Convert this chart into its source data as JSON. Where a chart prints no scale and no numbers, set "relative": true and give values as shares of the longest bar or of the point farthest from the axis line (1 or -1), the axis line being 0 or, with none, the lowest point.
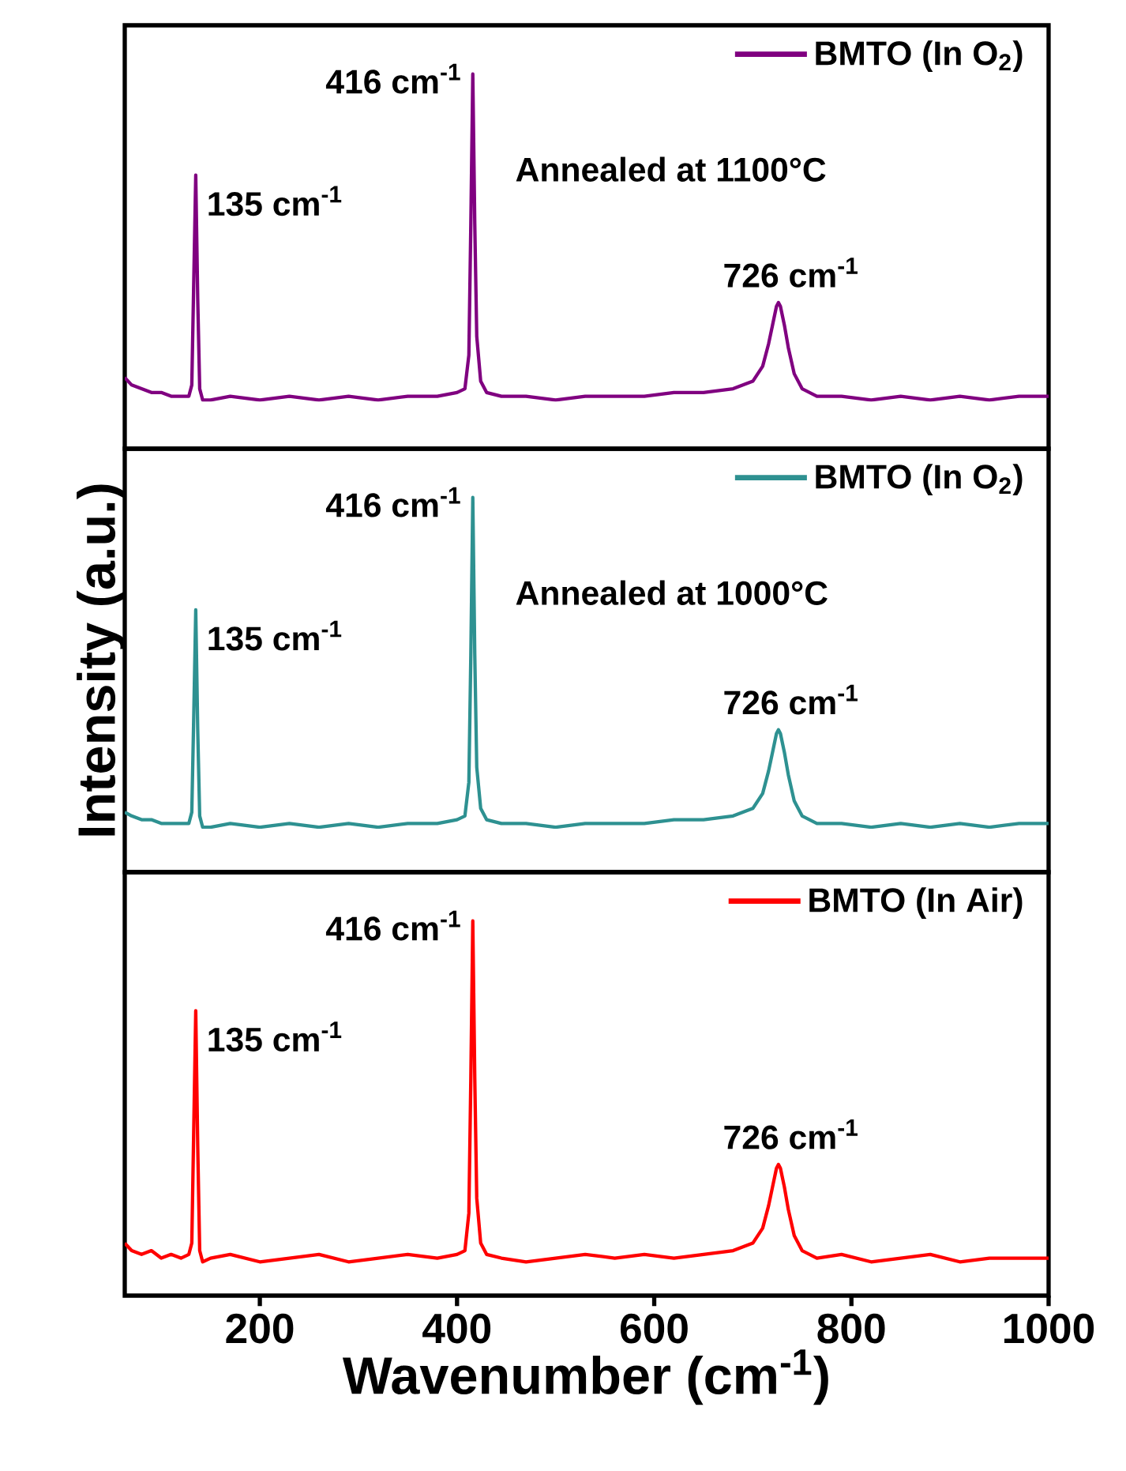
{
  "chart_data": [
    {
      "type": "line",
      "relative": true,
      "xlim": [
        63,
        1000
      ],
      "tick_labels": false,
      "legend": "top right",
      "series": [
        {
          "name": "BMTO (In O$_{2}$)",
          "color": "#800080",
          "x": [
            63,
            70,
            80,
            90,
            100,
            110,
            120,
            128,
            131,
            133,
            135,
            137,
            139,
            142,
            150,
            170,
            200,
            230,
            260,
            290,
            320,
            350,
            380,
            400,
            408,
            412,
            414,
            416,
            418,
            420,
            424,
            430,
            445,
            470,
            500,
            530,
            560,
            590,
            620,
            650,
            680,
            700,
            710,
            716,
            720,
            724,
            726,
            728,
            732,
            736,
            742,
            750,
            765,
            790,
            820,
            850,
            880,
            910,
            940,
            970,
            1000
          ],
          "values": [
            0.19,
            0.17,
            0.16,
            0.15,
            0.15,
            0.14,
            0.14,
            0.14,
            0.17,
            0.45,
            0.73,
            0.4,
            0.16,
            0.13,
            0.13,
            0.14,
            0.13,
            0.14,
            0.13,
            0.14,
            0.13,
            0.14,
            0.14,
            0.15,
            0.16,
            0.25,
            0.6,
            1.0,
            0.6,
            0.3,
            0.18,
            0.15,
            0.14,
            0.14,
            0.13,
            0.14,
            0.14,
            0.14,
            0.15,
            0.15,
            0.16,
            0.18,
            0.22,
            0.28,
            0.33,
            0.38,
            0.39,
            0.38,
            0.33,
            0.27,
            0.2,
            0.16,
            0.14,
            0.14,
            0.13,
            0.14,
            0.13,
            0.14,
            0.13,
            0.14,
            0.14
          ]
        }
      ],
      "annotations": [
        {
          "text": "416 cm$^{-1}$",
          "x": 416,
          "y": 1.0
        },
        {
          "text": "135 cm$^{-1}$",
          "x": 135,
          "y": 0.73
        },
        {
          "text": "726 cm$^{-1}$",
          "x": 726,
          "y": 0.39
        },
        "Annealed at 1100°C"
      ]
    },
    {
      "type": "line",
      "relative": true,
      "xlim": [
        63,
        1000
      ],
      "tick_labels": false,
      "legend": "top right",
      "ylabel": "Intensity (a.u.)",
      "series": [
        {
          "name": "BMTO (In O$_{2}$)",
          "color": "#2e9191",
          "x": [
            63,
            70,
            80,
            90,
            100,
            110,
            120,
            128,
            131,
            133,
            135,
            137,
            139,
            142,
            150,
            170,
            200,
            230,
            260,
            290,
            320,
            350,
            380,
            400,
            408,
            412,
            414,
            416,
            418,
            420,
            424,
            430,
            445,
            470,
            500,
            530,
            560,
            590,
            620,
            650,
            680,
            700,
            710,
            716,
            720,
            724,
            726,
            728,
            732,
            736,
            742,
            750,
            765,
            790,
            820,
            850,
            880,
            910,
            940,
            970,
            1000
          ],
          "values": [
            0.16,
            0.15,
            0.14,
            0.14,
            0.13,
            0.13,
            0.13,
            0.13,
            0.16,
            0.42,
            0.7,
            0.38,
            0.15,
            0.12,
            0.12,
            0.13,
            0.12,
            0.13,
            0.12,
            0.13,
            0.12,
            0.13,
            0.13,
            0.14,
            0.15,
            0.24,
            0.58,
            1.0,
            0.58,
            0.28,
            0.17,
            0.14,
            0.13,
            0.13,
            0.12,
            0.13,
            0.13,
            0.13,
            0.14,
            0.14,
            0.15,
            0.17,
            0.21,
            0.27,
            0.32,
            0.37,
            0.38,
            0.37,
            0.32,
            0.26,
            0.19,
            0.15,
            0.13,
            0.13,
            0.12,
            0.13,
            0.12,
            0.13,
            0.12,
            0.13,
            0.13
          ]
        }
      ],
      "annotations": [
        {
          "text": "416 cm$^{-1}$",
          "x": 416,
          "y": 1.0
        },
        {
          "text": "135 cm$^{-1}$",
          "x": 135,
          "y": 0.7
        },
        {
          "text": "726 cm$^{-1}$",
          "x": 726,
          "y": 0.38
        },
        "Annealed at 1000°C"
      ]
    },
    {
      "type": "line",
      "relative": true,
      "xlim": [
        63,
        1000
      ],
      "xticks": [
        200,
        400,
        600,
        800,
        1000
      ],
      "tick_labels": "x",
      "legend": "top right",
      "xlabel": "Wavenumber (cm$^{-1}$)",
      "series": [
        {
          "name": "BMTO (In Air)",
          "color": "#ff0000",
          "x": [
            63,
            70,
            80,
            90,
            100,
            110,
            120,
            128,
            131,
            133,
            135,
            137,
            139,
            142,
            150,
            170,
            200,
            230,
            260,
            290,
            320,
            350,
            380,
            400,
            408,
            412,
            414,
            416,
            418,
            420,
            424,
            430,
            445,
            470,
            500,
            530,
            560,
            590,
            620,
            650,
            680,
            700,
            710,
            716,
            720,
            724,
            726,
            728,
            732,
            736,
            742,
            750,
            765,
            790,
            820,
            850,
            880,
            910,
            940,
            970,
            1000
          ],
          "values": [
            0.14,
            0.12,
            0.11,
            0.12,
            0.1,
            0.11,
            0.1,
            0.11,
            0.14,
            0.45,
            0.76,
            0.4,
            0.12,
            0.09,
            0.1,
            0.11,
            0.09,
            0.1,
            0.11,
            0.09,
            0.1,
            0.11,
            0.1,
            0.11,
            0.12,
            0.22,
            0.58,
            1.0,
            0.58,
            0.26,
            0.14,
            0.11,
            0.1,
            0.09,
            0.1,
            0.11,
            0.1,
            0.11,
            0.1,
            0.11,
            0.12,
            0.14,
            0.18,
            0.24,
            0.29,
            0.34,
            0.35,
            0.34,
            0.29,
            0.23,
            0.16,
            0.12,
            0.1,
            0.11,
            0.09,
            0.1,
            0.11,
            0.09,
            0.1,
            0.1,
            0.1
          ]
        }
      ],
      "annotations": [
        {
          "text": "416 cm$^{-1}$",
          "x": 416,
          "y": 1.0
        },
        {
          "text": "135 cm$^{-1}$",
          "x": 135,
          "y": 0.76
        },
        {
          "text": "726 cm$^{-1}$",
          "x": 726,
          "y": 0.35
        }
      ]
    }
  ]
}
